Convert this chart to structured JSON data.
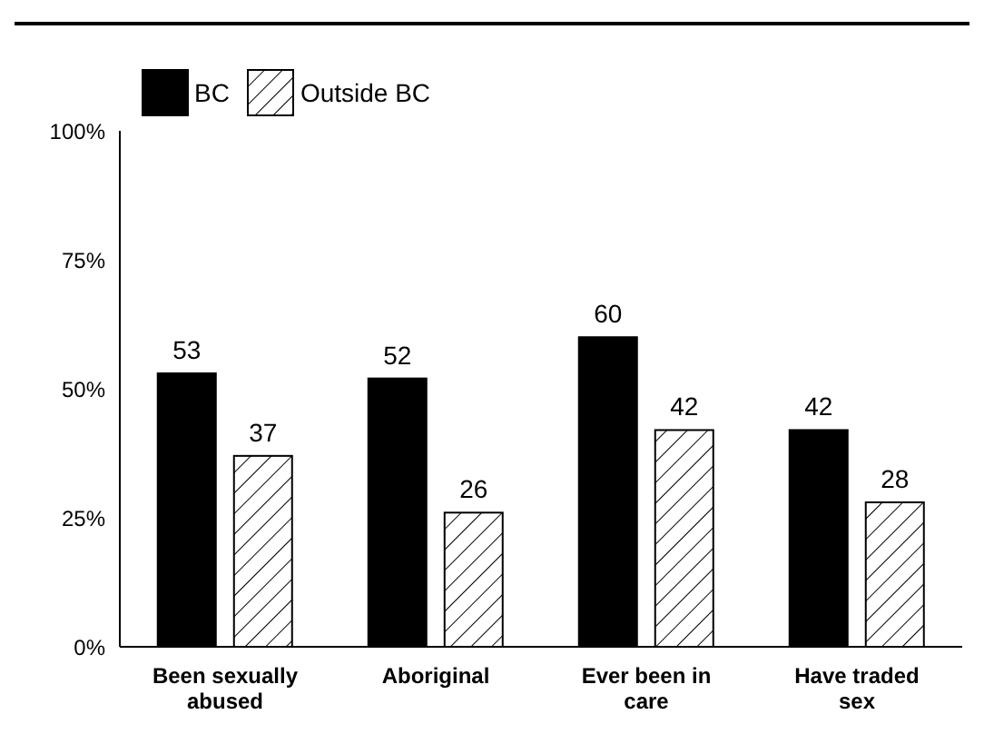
{
  "chart_data": {
    "type": "bar",
    "categories": [
      "Been sexually abused",
      "Aboriginal",
      "Ever been in care",
      "Have traded sex"
    ],
    "series": [
      {
        "name": "BC",
        "color": "#000000",
        "values": [
          53,
          52,
          60,
          42
        ]
      },
      {
        "name": "Outside BC",
        "color": "#ffffff",
        "values": [
          37,
          26,
          42,
          28
        ]
      }
    ],
    "ylim": [
      0,
      100
    ],
    "yticks": [
      {
        "value": 0,
        "label": "0%"
      },
      {
        "value": 25,
        "label": "25%"
      },
      {
        "value": 50,
        "label": "50%"
      },
      {
        "value": 75,
        "label": "75%"
      },
      {
        "value": 100,
        "label": "100%"
      }
    ],
    "grid": false,
    "legend": "top left",
    "data_labels": true
  }
}
